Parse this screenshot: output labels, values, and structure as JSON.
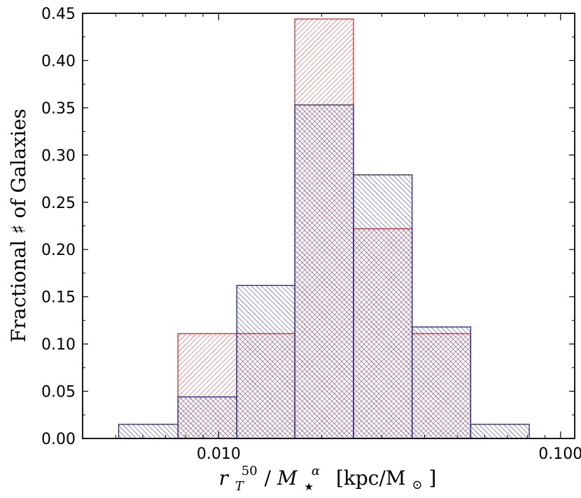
{
  "chart_data": {
    "type": "histogram",
    "title": "",
    "xlabel_parts": {
      "base": "r",
      "sub": "T",
      "sup": "50",
      "slash": "/",
      "mass": "M",
      "mass_sub": "★",
      "mass_sup": "α",
      "units": "[kpc/M",
      "sun": "⊙",
      "close": "]"
    },
    "ylabel": "Fractional ♯ of Galaxies",
    "x_scale": "log",
    "xlim": [
      0.004,
      0.11
    ],
    "ylim": [
      0.0,
      0.45
    ],
    "x_ticks": [
      {
        "value": 0.01,
        "label": "0.010"
      },
      {
        "value": 0.1,
        "label": "0.100"
      }
    ],
    "y_ticks": [
      {
        "value": 0.0,
        "label": "0.00"
      },
      {
        "value": 0.05,
        "label": "0.05"
      },
      {
        "value": 0.1,
        "label": "0.10"
      },
      {
        "value": 0.15,
        "label": "0.15"
      },
      {
        "value": 0.2,
        "label": "0.20"
      },
      {
        "value": 0.25,
        "label": "0.25"
      },
      {
        "value": 0.3,
        "label": "0.30"
      },
      {
        "value": 0.35,
        "label": "0.35"
      },
      {
        "value": 0.4,
        "label": "0.40"
      },
      {
        "value": 0.45,
        "label": "0.45"
      }
    ],
    "bin_edges": [
      0.0051,
      0.0076,
      0.0113,
      0.0167,
      0.0248,
      0.0368,
      0.0546,
      0.081
    ],
    "series": [
      {
        "color": "#cc3333",
        "hatch": "right-diagonal",
        "values": [
          0.0,
          0.111,
          0.111,
          0.444,
          0.222,
          0.111,
          0.0
        ]
      },
      {
        "color": "#22228b",
        "hatch": "left-diagonal",
        "values": [
          0.015,
          0.044,
          0.162,
          0.353,
          0.279,
          0.118,
          0.015
        ]
      }
    ],
    "grid": false,
    "legend": "none"
  }
}
